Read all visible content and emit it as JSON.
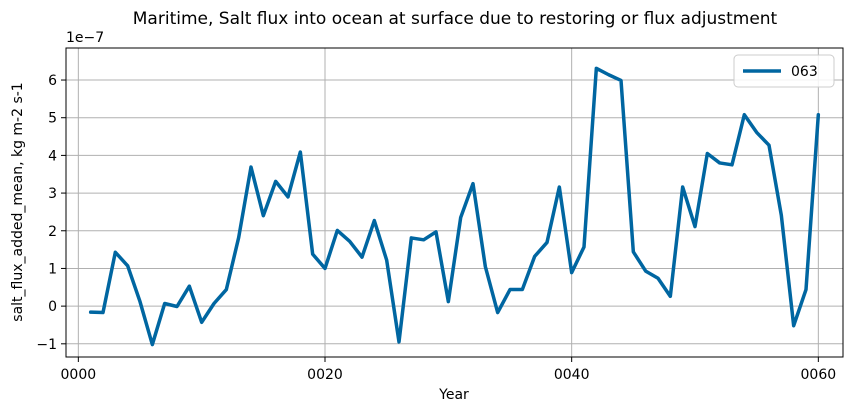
{
  "chart_data": {
    "type": "line",
    "title": "Maritime, Salt flux into ocean at surface due to restoring or flux adjustment",
    "xlabel": "Year",
    "ylabel": "salt_flux_added_mean, kg m-2 s-1",
    "y_offset_label": "1e−7",
    "xlim": [
      -1,
      62
    ],
    "ylim": [
      -1.35,
      6.85
    ],
    "x_ticks": [
      0,
      20,
      40,
      60
    ],
    "x_tick_labels": [
      "0000",
      "0020",
      "0040",
      "0060"
    ],
    "y_ticks": [
      -1,
      0,
      1,
      2,
      3,
      4,
      5,
      6
    ],
    "y_tick_labels": [
      "−1",
      "0",
      "1",
      "2",
      "3",
      "4",
      "5",
      "6"
    ],
    "grid": true,
    "legend_position": "top-right",
    "series_color": "#0066a1",
    "series": [
      {
        "name": "063",
        "x": [
          1,
          2,
          3,
          4,
          5,
          6,
          7,
          8,
          9,
          10,
          11,
          12,
          13,
          14,
          15,
          16,
          17,
          18,
          19,
          20,
          21,
          22,
          23,
          24,
          25,
          26,
          27,
          28,
          29,
          30,
          31,
          32,
          33,
          34,
          35,
          36,
          37,
          38,
          39,
          40,
          41,
          42,
          43,
          44,
          45,
          46,
          47,
          48,
          49,
          50,
          51,
          52,
          53,
          54,
          55,
          56,
          57,
          58,
          59,
          60
        ],
        "values": [
          -0.16,
          -0.17,
          1.43,
          1.07,
          0.12,
          -1.02,
          0.07,
          -0.01,
          0.53,
          -0.43,
          0.07,
          0.44,
          1.82,
          3.69,
          2.4,
          3.31,
          2.9,
          4.09,
          1.38,
          1.0,
          2.01,
          1.72,
          1.3,
          2.27,
          1.22,
          -0.95,
          1.81,
          1.76,
          1.97,
          0.12,
          2.35,
          3.25,
          1.05,
          -0.17,
          0.44,
          0.44,
          1.32,
          1.69,
          3.16,
          0.89,
          1.57,
          6.31,
          6.14,
          5.99,
          1.44,
          0.93,
          0.74,
          0.26,
          3.16,
          2.11,
          4.05,
          3.8,
          3.75,
          5.08,
          4.61,
          4.27,
          2.41,
          -0.52,
          0.44,
          5.08
        ]
      }
    ]
  }
}
